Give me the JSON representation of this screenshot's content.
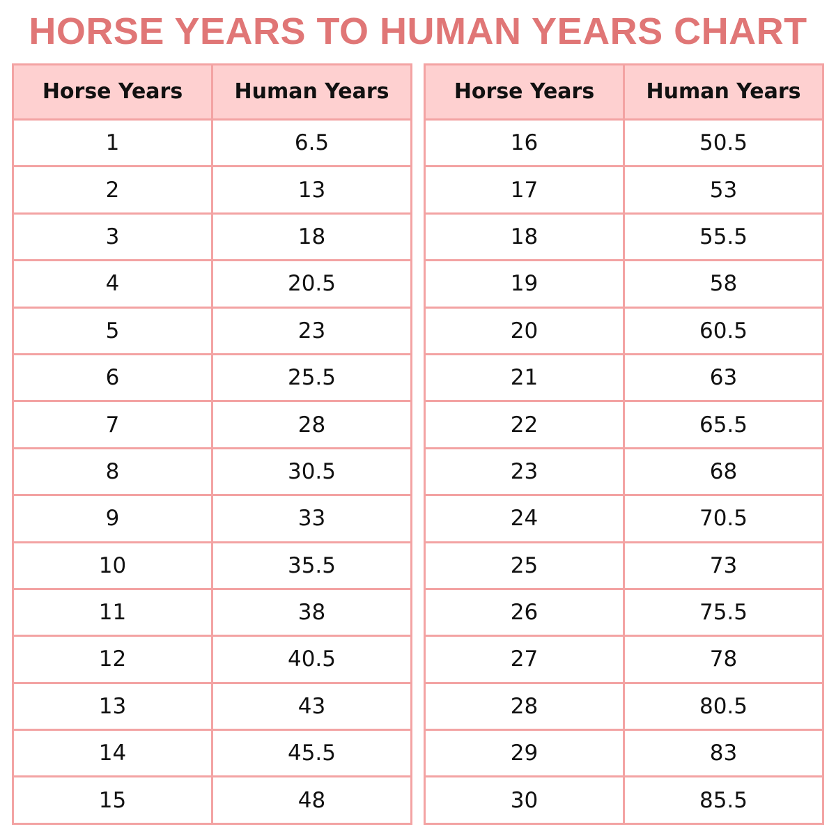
{
  "title": "HORSE YEARS TO HUMAN YEARS CHART",
  "tables": [
    {
      "header": [
        "Horse Years",
        "Human Years"
      ],
      "rows": [
        [
          1,
          6.5
        ],
        [
          2,
          13
        ],
        [
          3,
          18
        ],
        [
          4,
          20.5
        ],
        [
          5,
          23
        ],
        [
          6,
          25.5
        ],
        [
          7,
          28
        ],
        [
          8,
          30.5
        ],
        [
          9,
          33
        ],
        [
          10,
          35.5
        ],
        [
          11,
          38
        ],
        [
          12,
          40.5
        ],
        [
          13,
          43
        ],
        [
          14,
          45.5
        ],
        [
          15,
          48
        ]
      ]
    },
    {
      "header": [
        "Horse Years",
        "Human Years"
      ],
      "rows": [
        [
          16,
          50.5
        ],
        [
          17,
          53
        ],
        [
          18,
          55.5
        ],
        [
          19,
          58
        ],
        [
          20,
          60.5
        ],
        [
          21,
          63
        ],
        [
          22,
          65.5
        ],
        [
          23,
          68
        ],
        [
          24,
          70.5
        ],
        [
          25,
          73
        ],
        [
          26,
          75.5
        ],
        [
          27,
          78
        ],
        [
          28,
          80.5
        ],
        [
          29,
          83
        ],
        [
          30,
          85.5
        ]
      ]
    }
  ]
}
